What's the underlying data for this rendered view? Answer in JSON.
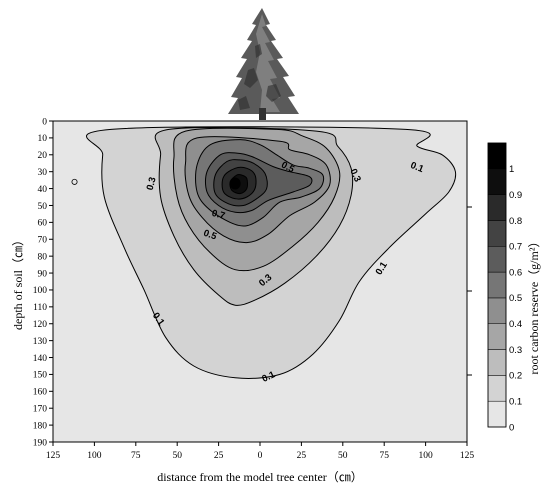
{
  "chart_data": {
    "type": "contour",
    "xlabel": "distance from the model tree center（㎝）",
    "ylabel": "depth of soil（㎝）",
    "colorbar_label": "root carbon reserve（g/m²）",
    "x_ticks": [
      "125",
      "100",
      "75",
      "50",
      "25",
      "0",
      "25",
      "50",
      "75",
      "100",
      "125"
    ],
    "y_ticks": [
      "0",
      "10",
      "20",
      "30",
      "40",
      "50",
      "60",
      "70",
      "80",
      "90",
      "100",
      "110",
      "120",
      "130",
      "140",
      "150",
      "160",
      "170",
      "180",
      "190"
    ],
    "xlim": [
      -125,
      125
    ],
    "ylim": [
      0,
      190
    ],
    "levels": [
      0.1,
      0.2,
      0.3,
      0.4,
      0.5,
      0.6,
      0.7,
      0.8,
      0.9,
      1.0
    ],
    "colorbar_ticks": [
      "0",
      "0.1",
      "0.2",
      "0.3",
      "0.4",
      "0.5",
      "0.6",
      "0.7",
      "0.8",
      "0.9",
      "1"
    ],
    "colorbar_range": [
      0,
      1.1
    ],
    "colors": [
      "#e6e6e6",
      "#d3d3d3",
      "#bdbdbd",
      "#a6a6a6",
      "#8f8f8f",
      "#767676",
      "#5c5c5c",
      "#434343",
      "#2a2a2a",
      "#0e0e0e",
      "#000000"
    ],
    "peak": {
      "x": -15,
      "y": 37,
      "value": 1.0
    },
    "contours": [
      {
        "level": 0.1,
        "points": [
          [
            -90,
            5
          ],
          [
            -95,
            20
          ],
          [
            -94,
            45
          ],
          [
            -82,
            75
          ],
          [
            -70,
            100
          ],
          [
            -57,
            128
          ],
          [
            -40,
            145
          ],
          [
            -15,
            152
          ],
          [
            12,
            150
          ],
          [
            32,
            138
          ],
          [
            48,
            118
          ],
          [
            60,
            95
          ],
          [
            78,
            75
          ],
          [
            100,
            55
          ],
          [
            114,
            42
          ],
          [
            118,
            30
          ],
          [
            110,
            20
          ],
          [
            95,
            15
          ],
          [
            88,
            5
          ]
        ]
      },
      {
        "level": 0.2,
        "points": [
          [
            -55,
            5
          ],
          [
            -60,
            20
          ],
          [
            -60,
            45
          ],
          [
            -52,
            68
          ],
          [
            -40,
            88
          ],
          [
            -25,
            103
          ],
          [
            -15,
            109
          ],
          [
            -3,
            106
          ],
          [
            15,
            96
          ],
          [
            34,
            80
          ],
          [
            48,
            62
          ],
          [
            55,
            44
          ],
          [
            55,
            28
          ],
          [
            47,
            15
          ],
          [
            34,
            6
          ]
        ]
      },
      {
        "level": 0.3,
        "points": [
          [
            -45,
            6
          ],
          [
            -52,
            22
          ],
          [
            -50,
            45
          ],
          [
            -43,
            62
          ],
          [
            -30,
            78
          ],
          [
            -15,
            88
          ],
          [
            2,
            86
          ],
          [
            20,
            74
          ],
          [
            35,
            60
          ],
          [
            45,
            45
          ],
          [
            48,
            30
          ],
          [
            40,
            16
          ],
          [
            26,
            9
          ],
          [
            10,
            5
          ]
        ]
      },
      {
        "level": 0.4,
        "points": [
          [
            -38,
            10
          ],
          [
            -45,
            25
          ],
          [
            -43,
            44
          ],
          [
            -35,
            57
          ],
          [
            -22,
            68
          ],
          [
            -8,
            72
          ],
          [
            5,
            67
          ],
          [
            18,
            56
          ],
          [
            33,
            48
          ],
          [
            42,
            38
          ],
          [
            40,
            26
          ],
          [
            30,
            20
          ],
          [
            18,
            17
          ],
          [
            12,
            12
          ]
        ]
      },
      {
        "level": 0.5,
        "points": [
          [
            -30,
            14
          ],
          [
            -38,
            26
          ],
          [
            -38,
            42
          ],
          [
            -31,
            52
          ],
          [
            -18,
            60
          ],
          [
            -8,
            62
          ],
          [
            2,
            57
          ],
          [
            12,
            48
          ],
          [
            25,
            45
          ],
          [
            36,
            40
          ],
          [
            38,
            32
          ],
          [
            30,
            28
          ],
          [
            20,
            26
          ],
          [
            10,
            20
          ],
          [
            0,
            14
          ],
          [
            -12,
            11
          ]
        ]
      },
      {
        "level": 0.6,
        "points": [
          [
            -24,
            20
          ],
          [
            -32,
            30
          ],
          [
            -32,
            42
          ],
          [
            -25,
            50
          ],
          [
            -15,
            54
          ],
          [
            -5,
            53
          ],
          [
            5,
            47
          ],
          [
            20,
            42
          ],
          [
            30,
            38
          ],
          [
            30,
            33
          ],
          [
            18,
            30
          ],
          [
            8,
            27
          ],
          [
            -5,
            21
          ],
          [
            -14,
            19
          ]
        ]
      },
      {
        "level": 0.7,
        "points": [
          [
            -20,
            24
          ],
          [
            -27,
            32
          ],
          [
            -27,
            43
          ],
          [
            -19,
            49
          ],
          [
            -10,
            50
          ],
          [
            -2,
            46
          ],
          [
            4,
            40
          ],
          [
            3,
            31
          ],
          [
            -4,
            25
          ],
          [
            -12,
            23
          ]
        ]
      },
      {
        "level": 0.8,
        "points": [
          [
            -15,
            28
          ],
          [
            -22,
            33
          ],
          [
            -22,
            42
          ],
          [
            -15,
            46
          ],
          [
            -8,
            45
          ],
          [
            -3,
            40
          ],
          [
            -3,
            32
          ],
          [
            -8,
            28
          ]
        ]
      },
      {
        "level": 0.9,
        "points": [
          [
            -14,
            32
          ],
          [
            -18,
            36
          ],
          [
            -17,
            41
          ],
          [
            -12,
            43
          ],
          [
            -8,
            40
          ],
          [
            -8,
            34
          ],
          [
            -11,
            32
          ]
        ]
      }
    ],
    "contour_labels": [
      {
        "text": "0.5",
        "x": 17,
        "y": 27,
        "angle": 28
      },
      {
        "text": "0.3",
        "x": 58,
        "y": 32,
        "angle": 65
      },
      {
        "text": "0.1",
        "x": 95,
        "y": 27,
        "angle": 22
      },
      {
        "text": "0.3",
        "x": -66,
        "y": 37,
        "angle": -75
      },
      {
        "text": "0.7",
        "x": -25,
        "y": 55,
        "angle": 15
      },
      {
        "text": "0.5",
        "x": -30,
        "y": 67,
        "angle": 20
      },
      {
        "text": "0.3",
        "x": 3,
        "y": 94,
        "angle": -40
      },
      {
        "text": "0.1",
        "x": 73,
        "y": 87,
        "angle": -58
      },
      {
        "text": "0.1",
        "x": -61,
        "y": 117,
        "angle": 55
      },
      {
        "text": "0.1",
        "x": 5,
        "y": 151,
        "angle": -25
      }
    ],
    "outlier_point": {
      "x": -112,
      "y": 36
    },
    "legend_placement": "right",
    "grid": false
  }
}
